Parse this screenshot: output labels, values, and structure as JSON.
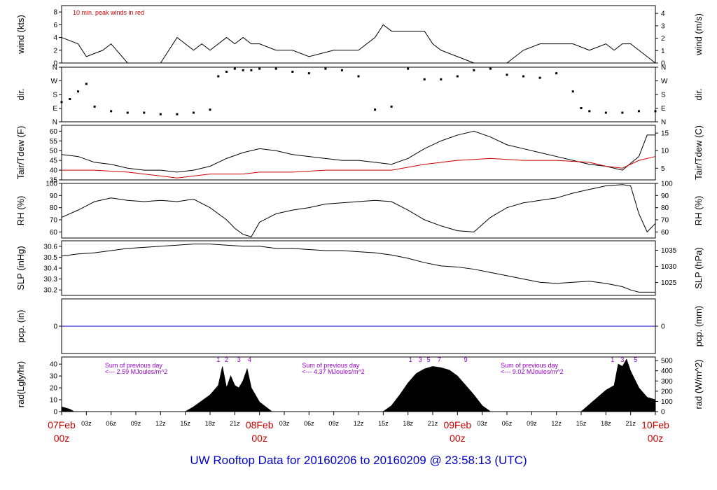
{
  "page_title": "UW Rooftop Data for 20160206  to  20160209 @ 23:58:13  (UTC)",
  "colors": {
    "black": "#000000",
    "red": "#cc0000",
    "blue": "#0000cc",
    "purple": "#9900cc"
  },
  "time_axis": {
    "major": [
      {
        "label_top": "07Feb",
        "label_bottom": "00z",
        "hour": 0
      },
      {
        "label_top": "08Feb",
        "label_bottom": "00z",
        "hour": 24
      },
      {
        "label_top": "09Feb",
        "label_bottom": "00z",
        "hour": 48
      },
      {
        "label_top": "10Feb",
        "label_bottom": "00z",
        "hour": 72
      }
    ],
    "minor_labels": [
      "03z",
      "06z",
      "09z",
      "12z",
      "15z",
      "18z",
      "21z"
    ]
  },
  "chart_data": [
    {
      "id": "wind",
      "type": "line",
      "ylabel_left": "wind (kts)",
      "ylabel_right": "wind (m/s)",
      "annotation": "10 min. peak winds in red",
      "ylim": [
        0,
        9
      ],
      "left_ticks": [
        "0",
        "2",
        "4",
        "6",
        "8"
      ],
      "right_ticks": [
        "0",
        "1",
        "2",
        "3",
        "4"
      ],
      "series": [
        {
          "color": "#000000",
          "x_hours": [
            0,
            2,
            3,
            5,
            6,
            8,
            12,
            14,
            16,
            17,
            18,
            20,
            21,
            22,
            23,
            24,
            26,
            28,
            30,
            33,
            36,
            38,
            39,
            40,
            42,
            44,
            45,
            46,
            48,
            50,
            52,
            54,
            56,
            58,
            60,
            62,
            64,
            66,
            67,
            68,
            69,
            70,
            71,
            72
          ],
          "values": [
            4,
            3,
            1,
            2,
            3,
            0,
            0,
            4,
            2,
            3,
            2,
            4,
            3,
            4,
            3,
            3,
            2,
            2,
            1,
            2,
            2,
            4,
            6,
            5,
            5,
            5,
            3,
            2,
            1,
            0,
            0,
            0,
            2,
            3,
            3,
            3,
            2,
            3,
            2,
            3,
            3,
            2,
            1,
            0
          ]
        }
      ]
    },
    {
      "id": "dir",
      "type": "scatter",
      "ylabel_left": "dir.",
      "ylabel_right": "dir.",
      "left_ticks": [
        "N",
        "E",
        "S",
        "W",
        "N"
      ],
      "right_ticks": [
        "N",
        "E",
        "S",
        "W",
        "N"
      ],
      "ylim": [
        0,
        360
      ],
      "series": [
        {
          "color": "#000000",
          "x_hours": [
            0,
            1,
            2,
            3,
            4,
            6,
            8,
            10,
            12,
            14,
            16,
            18,
            19,
            20,
            21,
            22,
            23,
            24,
            26,
            28,
            30,
            32,
            34,
            36,
            38,
            40,
            42,
            44,
            46,
            48,
            50,
            52,
            54,
            56,
            58,
            60,
            62,
            63,
            64,
            66,
            68,
            70,
            72
          ],
          "values": [
            130,
            150,
            200,
            250,
            100,
            70,
            60,
            60,
            50,
            50,
            60,
            80,
            300,
            330,
            350,
            340,
            340,
            350,
            350,
            330,
            320,
            350,
            340,
            300,
            80,
            100,
            350,
            280,
            280,
            300,
            340,
            350,
            310,
            300,
            290,
            320,
            200,
            90,
            70,
            60,
            60,
            70,
            70
          ]
        }
      ]
    },
    {
      "id": "temp",
      "type": "line",
      "ylabel_left": "Tair/Tdew (F)",
      "ylabel_right": "Tair/Tdew (C)",
      "ylim": [
        35,
        63
      ],
      "left_ticks": [
        "35",
        "40",
        "45",
        "50",
        "55",
        "60"
      ],
      "right_ticks": [
        "5",
        "10",
        "15"
      ],
      "series": [
        {
          "color": "#000000",
          "x_hours": [
            0,
            2,
            4,
            6,
            8,
            10,
            12,
            14,
            16,
            18,
            20,
            22,
            24,
            26,
            28,
            30,
            32,
            34,
            36,
            38,
            40,
            42,
            44,
            46,
            48,
            50,
            52,
            54,
            56,
            58,
            60,
            62,
            64,
            66,
            68,
            70,
            71,
            72
          ],
          "values": [
            48,
            47,
            44,
            43,
            41,
            40,
            40,
            39,
            40,
            42,
            46,
            49,
            51,
            50,
            48,
            47,
            46,
            45,
            45,
            44,
            43,
            46,
            51,
            55,
            58,
            60,
            57,
            53,
            51,
            49,
            47,
            45,
            43,
            42,
            40,
            47,
            58,
            58
          ]
        },
        {
          "color": "#cc0000",
          "x_hours": [
            0,
            4,
            8,
            12,
            14,
            18,
            22,
            24,
            28,
            32,
            36,
            40,
            44,
            48,
            52,
            56,
            60,
            64,
            66,
            68,
            70,
            72
          ],
          "values": [
            40,
            40,
            39,
            37,
            36,
            38,
            38,
            39,
            39,
            40,
            40,
            40,
            43,
            45,
            46,
            45,
            45,
            44,
            42,
            41,
            45,
            47
          ]
        }
      ]
    },
    {
      "id": "rh",
      "type": "line",
      "ylabel_left": "RH (%)",
      "ylabel_right": "RH (%)",
      "ylim": [
        55,
        100
      ],
      "left_ticks": [
        "60",
        "70",
        "80",
        "90",
        "100"
      ],
      "right_ticks": [
        "60",
        "70",
        "80",
        "90",
        "100"
      ],
      "series": [
        {
          "color": "#000000",
          "x_hours": [
            0,
            2,
            4,
            6,
            8,
            10,
            12,
            14,
            16,
            18,
            20,
            21,
            22,
            23,
            24,
            26,
            28,
            30,
            32,
            34,
            36,
            38,
            40,
            42,
            44,
            46,
            48,
            50,
            52,
            54,
            56,
            58,
            60,
            62,
            64,
            66,
            68,
            69,
            70,
            71,
            72
          ],
          "values": [
            72,
            78,
            85,
            88,
            86,
            85,
            86,
            85,
            87,
            80,
            70,
            63,
            58,
            56,
            68,
            75,
            78,
            80,
            83,
            84,
            85,
            86,
            85,
            78,
            70,
            65,
            61,
            60,
            72,
            80,
            84,
            86,
            88,
            92,
            95,
            98,
            99,
            98,
            75,
            60,
            67
          ]
        }
      ]
    },
    {
      "id": "slp",
      "type": "line",
      "ylabel_left": "SLP (inHg)",
      "ylabel_right": "SLP (hPa)",
      "ylim": [
        30.15,
        30.65
      ],
      "left_ticks": [
        "30.2",
        "30.3",
        "30.4",
        "30.5",
        "30.6"
      ],
      "right_ticks": [
        "1025",
        "1030",
        "1035"
      ],
      "series": [
        {
          "color": "#000000",
          "x_hours": [
            0,
            2,
            4,
            6,
            8,
            10,
            12,
            14,
            16,
            18,
            20,
            22,
            24,
            26,
            28,
            30,
            32,
            34,
            36,
            38,
            40,
            42,
            44,
            46,
            48,
            50,
            52,
            54,
            56,
            58,
            60,
            62,
            64,
            66,
            68,
            69,
            70,
            71,
            72
          ],
          "values": [
            30.51,
            30.53,
            30.54,
            30.56,
            30.58,
            30.59,
            30.6,
            30.61,
            30.62,
            30.62,
            30.61,
            30.6,
            30.6,
            30.58,
            30.58,
            30.57,
            30.56,
            30.56,
            30.55,
            30.54,
            30.52,
            30.49,
            30.45,
            30.42,
            30.41,
            30.39,
            30.36,
            30.33,
            30.3,
            30.27,
            30.26,
            30.27,
            30.28,
            30.26,
            30.23,
            30.2,
            30.18,
            30.18,
            30.18
          ]
        }
      ]
    },
    {
      "id": "pcp",
      "type": "line",
      "ylabel_left": "pcp. (in)",
      "ylabel_right": "pcp. (mm)",
      "ylim": [
        -1,
        1
      ],
      "left_ticks": [
        "0"
      ],
      "right_ticks": [
        "0"
      ],
      "series": [
        {
          "color": "#0000cc",
          "x_hours": [
            0,
            72
          ],
          "values": [
            0,
            0
          ]
        }
      ]
    },
    {
      "id": "rad",
      "type": "area",
      "ylabel_left": "rad(Lgly/hr)",
      "ylabel_right": "rad (W/m^2)",
      "ylim": [
        0,
        46
      ],
      "left_ticks": [
        "0",
        "10",
        "20",
        "30",
        "40"
      ],
      "right_ticks": [
        "0",
        "100",
        "200",
        "300",
        "400",
        "500"
      ],
      "series": [
        {
          "color": "#000000",
          "x_hours": [
            0,
            1,
            1.5,
            15,
            16,
            17,
            18,
            19,
            19.5,
            20,
            20.5,
            21,
            21.5,
            22,
            22.5,
            23,
            24,
            25.5,
            39,
            40,
            41,
            42,
            43,
            44,
            45,
            46,
            47,
            48,
            49,
            50,
            51,
            52,
            63,
            64,
            65,
            66,
            67,
            67.5,
            68,
            68.5,
            69,
            70,
            71,
            72
          ],
          "values": [
            4,
            2,
            0,
            0,
            4,
            9,
            14,
            22,
            38,
            20,
            30,
            22,
            20,
            26,
            36,
            20,
            8,
            0,
            0,
            5,
            14,
            24,
            32,
            36,
            38,
            37,
            35,
            30,
            22,
            14,
            5,
            0,
            0,
            6,
            12,
            18,
            22,
            40,
            38,
            44,
            34,
            20,
            12,
            10
          ]
        }
      ],
      "annotations": [
        {
          "text": "Sum of previous day",
          "hour": 4.4,
          "line": 1
        },
        {
          "text": "<--- 2.59 MJoules/m^2",
          "hour": 4.4,
          "line": 2
        },
        {
          "text": "Sum of previous day",
          "hour": 28.3,
          "line": 1
        },
        {
          "text": "<--- 4.37 MJoules/m^2",
          "hour": 28.3,
          "line": 2
        },
        {
          "text": "Sum of previous day",
          "hour": 52.4,
          "line": 1
        },
        {
          "text": "<--- 9.02 MJoules/m^2",
          "hour": 52.4,
          "line": 2
        }
      ],
      "hour_markers": [
        {
          "text": "1",
          "hour": 19
        },
        {
          "text": "2",
          "hour": 20
        },
        {
          "text": "3",
          "hour": 21.5
        },
        {
          "text": "4",
          "hour": 22.8
        },
        {
          "text": "1",
          "hour": 42.3
        },
        {
          "text": "3",
          "hour": 43.5
        },
        {
          "text": "5",
          "hour": 44.5
        },
        {
          "text": "7",
          "hour": 45.8
        },
        {
          "text": "9",
          "hour": 49
        },
        {
          "text": "1",
          "hour": 66.8
        },
        {
          "text": "3",
          "hour": 68
        },
        {
          "text": "5",
          "hour": 69.6
        }
      ]
    }
  ]
}
